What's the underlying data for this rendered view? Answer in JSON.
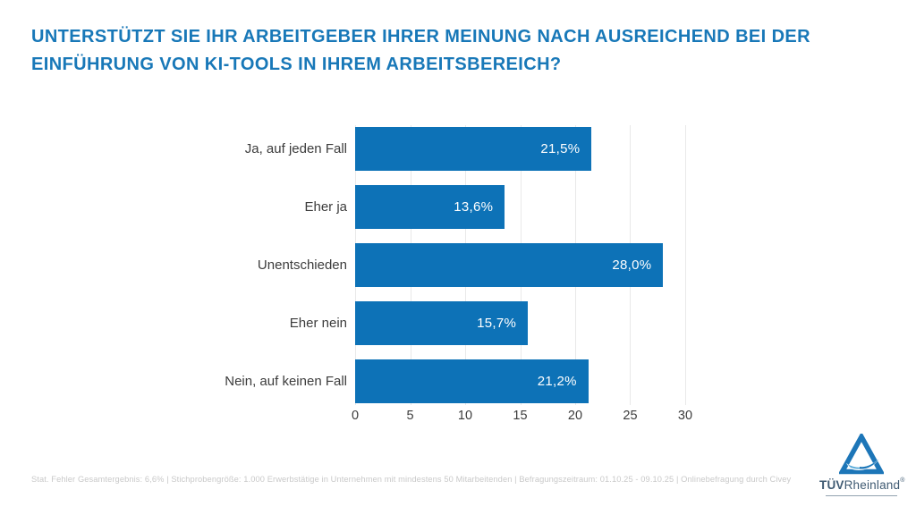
{
  "title": {
    "line1": "UNTERSTÜTZT SIE IHR ARBEITGEBER IHRER MEINUNG NACH AUSREICHEND BEI DER",
    "line2": "EINFÜHRUNG VON KI-TOOLS IN IHREM ARBEITSBEREICH?"
  },
  "chart_data": {
    "type": "bar",
    "orientation": "horizontal",
    "title": "Unterstützt Sie Ihr Arbeitgeber Ihrer Meinung nach ausreichend bei der Einführung von KI-Tools in Ihrem Arbeitsbereich?",
    "categories": [
      "Ja, auf jeden Fall",
      "Eher ja",
      "Unentschieden",
      "Eher nein",
      "Nein, auf keinen Fall"
    ],
    "values": [
      21.5,
      13.6,
      28.0,
      15.7,
      21.2
    ],
    "value_labels": [
      "21,5%",
      "13,6%",
      "28,0%",
      "15,7%",
      "21,2%"
    ],
    "x_ticks": [
      "0",
      "5",
      "10",
      "15",
      "20",
      "25",
      "30"
    ],
    "xlim": [
      0,
      30
    ],
    "grid": true,
    "legend": false,
    "bar_color": "#0d72b7",
    "grid_color": "#e9e9e9",
    "value_label_position": "inside-right"
  },
  "colors": {
    "title_blue": "#1878b8",
    "bar_blue": "#0d72b7",
    "grid_gray": "#e9e9e9",
    "label_dark": "#3c3c3c",
    "value_white": "#ffffff",
    "footnote_gray": "#c9c9c9",
    "logo_text": "#3f5a72",
    "logo_triangle_blue": "#1d76b8",
    "logo_swoosh_blue": "#5aabd9"
  },
  "footnote": {
    "text": "Stat. Fehler Gesamtergebnis: 6,6% | Stichprobengröße: 1.000 Erwerbstätige in Unternehmen mit mindestens 50 Mitarbeitenden | Befragungszeitraum: 01.10.25 - 09.10.25 | Onlinebefragung durch Civey"
  },
  "logo": {
    "brand_bold": "TÜV",
    "brand_regular": "Rheinland",
    "registered_mark": "®"
  }
}
